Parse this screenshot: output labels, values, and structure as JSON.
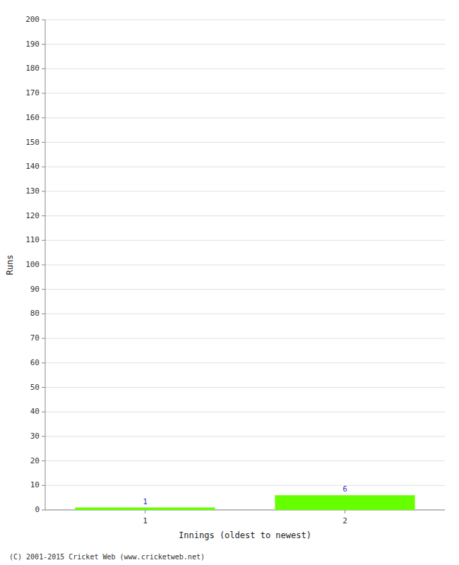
{
  "chart_data": {
    "type": "bar",
    "xlabel": "Innings (oldest to newest)",
    "ylabel": "Runs",
    "x": [
      1,
      2
    ],
    "values": [
      1,
      6
    ],
    "color": "#66ff00",
    "xlim": [
      0.5,
      2.5
    ],
    "xticks": [
      1,
      2
    ],
    "ylim": [
      0,
      200
    ],
    "yticks": [
      0,
      10,
      20,
      30,
      40,
      50,
      60,
      70,
      80,
      90,
      100,
      110,
      120,
      130,
      140,
      150,
      160,
      170,
      180,
      190,
      200
    ],
    "grid": true,
    "data_labels": true,
    "annotations": [
      "(C) 2001-2015 Cricket Web (www.cricketweb.net)"
    ]
  }
}
